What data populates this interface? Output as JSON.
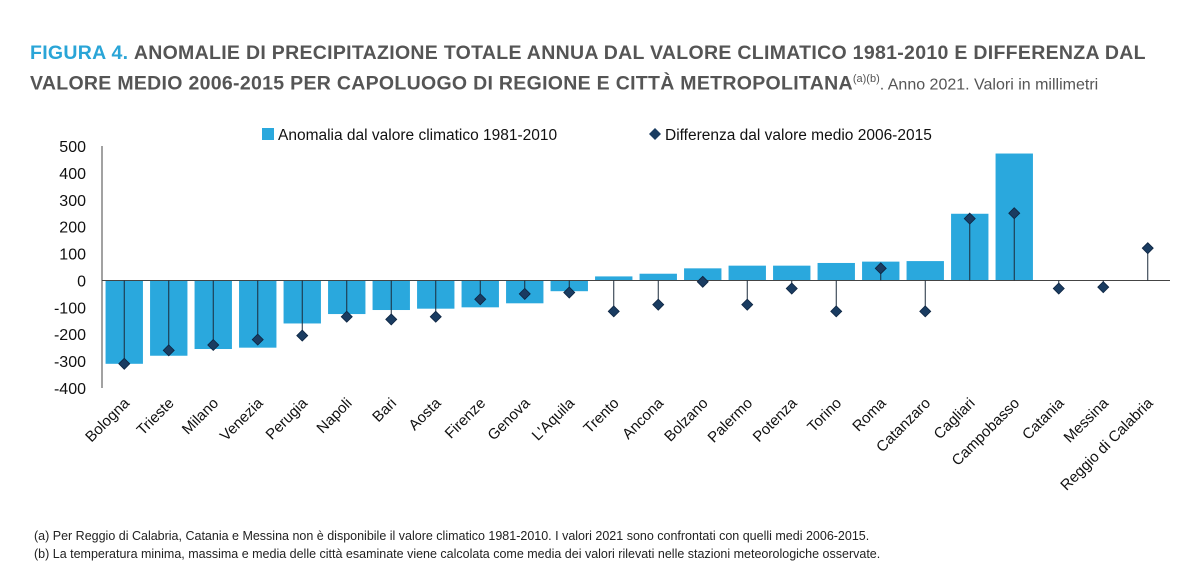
{
  "title": {
    "lead": "FIGURA 4.",
    "main": "ANOMALIE DI PRECIPITAZIONE TOTALE ANNUA DAL VALORE CLIMATICO 1981-2010 E DIFFERENZA DAL VALORE MEDIO 2006-2015 PER CAPOLUOGO DI REGIONE E CITTÀ METROPOLITANA",
    "sup": "(a)(b)",
    "sub": ". Anno 2021. Valori in millimetri"
  },
  "notes": [
    "(a) Per Reggio di Calabria, Catania e Messina non è disponibile il valore climatico 1981-2010. I valori 2021 sono confrontati con quelli medi 2006-2015.",
    "(b) La temperatura minima, massima e media delle città esaminate viene calcolata come media dei valori rilevati nelle stazioni meteorologiche osservate."
  ],
  "colors": {
    "bar": "#2aa8dd",
    "marker": "#1a3c61",
    "title_accent": "#2aa5d7"
  },
  "chart_data": {
    "type": "bar",
    "categories": [
      "Bologna",
      "Trieste",
      "Milano",
      "Venezia",
      "Perugia",
      "Napoli",
      "Bari",
      "Aosta",
      "Firenze",
      "Genova",
      "L'Aquila",
      "Trento",
      "Ancona",
      "Bolzano",
      "Palermo",
      "Potenza",
      "Torino",
      "Roma",
      "Catanzaro",
      "Cagliari",
      "Campobasso",
      "Catania",
      "Messina",
      "Reggio di Calabria"
    ],
    "series": [
      {
        "name": "Anomalia dal valore climatico 1981-2010",
        "kind": "bar",
        "values": [
          -310,
          -280,
          -255,
          -250,
          -160,
          -125,
          -110,
          -105,
          -100,
          -85,
          -40,
          15,
          25,
          45,
          55,
          55,
          65,
          70,
          72,
          248,
          472,
          null,
          null,
          null
        ]
      },
      {
        "name": "Differenza dal valore medio 2006-2015",
        "kind": "marker",
        "values": [
          -310,
          -260,
          -240,
          -220,
          -205,
          -135,
          -145,
          -135,
          -70,
          -50,
          -45,
          -115,
          -90,
          -5,
          -90,
          -30,
          -115,
          45,
          -115,
          230,
          250,
          -30,
          -25,
          120
        ]
      }
    ],
    "ylim": [
      -400,
      500
    ],
    "yticks": [
      500,
      400,
      300,
      200,
      100,
      0,
      -100,
      -200,
      -300,
      -400
    ],
    "legend": "top"
  }
}
